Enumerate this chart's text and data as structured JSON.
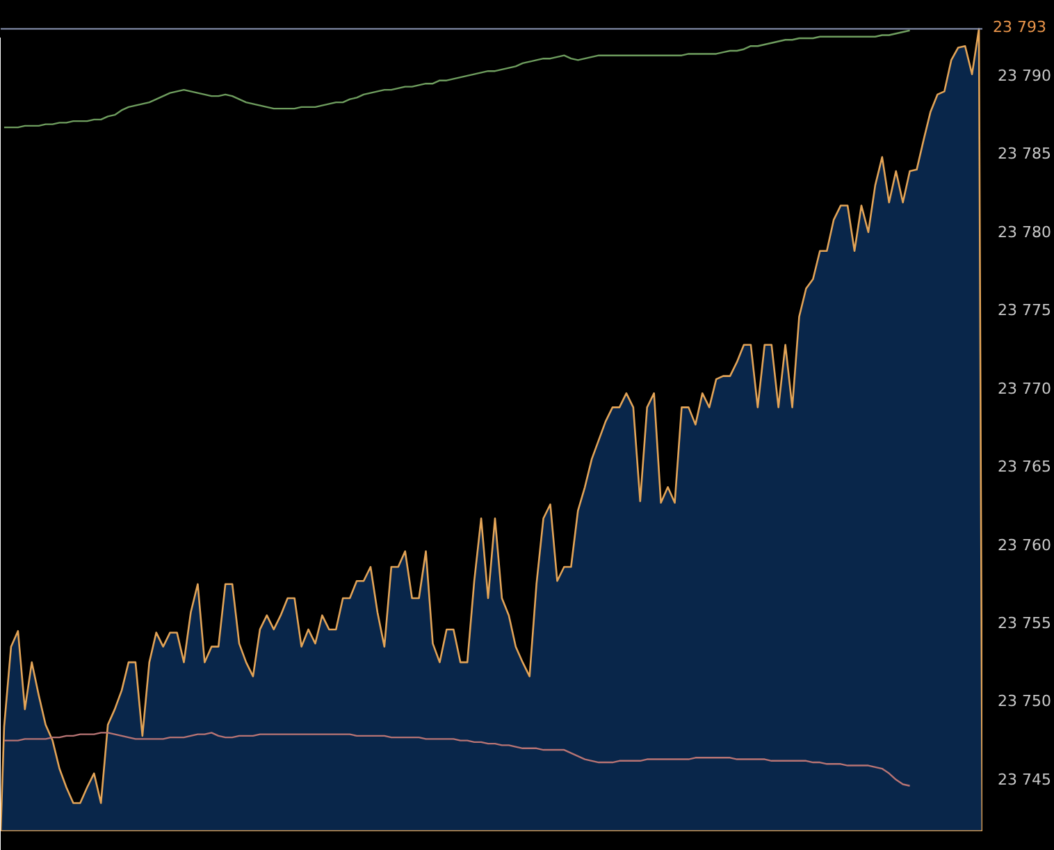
{
  "chart_data": {
    "type": "line",
    "categories": [
      null,
      null,
      null,
      null,
      null,
      null,
      null,
      null,
      null,
      null,
      null,
      null,
      null,
      null,
      null,
      null,
      null,
      null,
      null,
      null,
      null,
      null,
      null,
      null,
      null,
      null,
      null,
      null,
      null,
      null,
      null,
      null,
      null,
      null,
      null,
      null,
      null,
      null,
      null,
      null,
      null,
      null,
      null,
      null,
      null,
      null,
      null,
      null,
      null,
      null,
      null,
      null,
      null,
      null,
      null,
      null,
      null,
      null,
      null,
      null,
      null,
      null,
      null,
      null,
      null,
      null,
      null,
      null,
      null,
      null,
      null,
      null,
      null,
      null,
      null,
      null,
      null,
      null,
      null,
      null,
      null,
      null,
      null,
      null,
      null,
      null,
      null,
      null,
      null,
      null,
      null,
      null,
      null,
      null,
      null,
      null,
      null,
      null,
      null,
      null,
      null,
      null,
      null,
      null,
      null,
      null,
      null,
      null,
      null,
      null,
      null,
      null,
      null,
      null,
      null,
      null,
      null,
      null,
      null,
      null,
      null,
      null,
      null,
      null,
      null,
      null,
      null,
      null,
      null,
      null,
      null,
      null,
      null,
      null,
      null,
      null,
      null,
      null,
      null,
      null,
      null,
      null
    ],
    "ylim": [
      23741.7,
      23794.8
    ],
    "yticks": [
      {
        "value": 23745,
        "label": "23 745"
      },
      {
        "value": 23750,
        "label": "23 750"
      },
      {
        "value": 23755,
        "label": "23 755"
      },
      {
        "value": 23760,
        "label": "23 760"
      },
      {
        "value": 23765,
        "label": "23 765"
      },
      {
        "value": 23770,
        "label": "23 770"
      },
      {
        "value": 23775,
        "label": "23 775"
      },
      {
        "value": 23780,
        "label": "23 780"
      },
      {
        "value": 23785,
        "label": "23 785"
      },
      {
        "value": 23790,
        "label": "23 790"
      }
    ],
    "tick_labels": "y",
    "ref_lines": [
      {
        "axis": "y",
        "value": 23793,
        "label": "23 793",
        "color": "#8a96b4"
      }
    ],
    "series": [
      {
        "type": "area",
        "color": "#e3a457",
        "values": [
          23748.4,
          23753.5,
          23754.5,
          23749.5,
          23752.5,
          23750.4,
          23748.5,
          23747.5,
          23745.7,
          23744.5,
          23743.5,
          23743.5,
          23744.5,
          23745.4,
          23743.5,
          23748.5,
          23749.5,
          23750.7,
          23752.5,
          23752.5,
          23747.8,
          23752.5,
          23754.4,
          23753.5,
          23754.4,
          23754.4,
          23752.5,
          23755.7,
          23757.5,
          23752.5,
          23753.5,
          23753.5,
          23757.5,
          23757.5,
          23753.7,
          23752.5,
          23751.6,
          23754.6,
          23755.5,
          23754.6,
          23755.5,
          23756.6,
          23756.6,
          23753.5,
          23754.6,
          23753.7,
          23755.5,
          23754.6,
          23754.6,
          23756.6,
          23756.6,
          23757.7,
          23757.7,
          23758.6,
          23755.7,
          23753.5,
          23758.6,
          23758.6,
          23759.6,
          23756.6,
          23756.6,
          23759.6,
          23753.7,
          23752.5,
          23754.6,
          23754.6,
          23752.5,
          23752.5,
          23757.7,
          23761.7,
          23756.6,
          23761.7,
          23756.6,
          23755.5,
          23753.5,
          23752.5,
          23751.6,
          23757.5,
          23761.7,
          23762.6,
          23757.7,
          23758.6,
          23758.6,
          23762.2,
          23763.7,
          23765.5,
          23766.7,
          23767.9,
          23768.8,
          23768.8,
          23769.7,
          23768.8,
          23762.8,
          23768.8,
          23769.7,
          23762.7,
          23763.7,
          23762.7,
          23768.8,
          23768.8,
          23767.7,
          23769.7,
          23768.8,
          23770.6,
          23770.8,
          23770.8,
          23771.7,
          23772.8,
          23772.8,
          23768.8,
          23772.8,
          23772.8,
          23768.8,
          23772.8,
          23768.8,
          23774.6,
          23776.4,
          23777.0,
          23778.8,
          23778.8,
          23780.8,
          23781.7,
          23781.7,
          23778.8,
          23781.7,
          23780.0,
          23783.0,
          23784.8,
          23781.9,
          23783.9,
          23781.9,
          23783.9,
          23784.0,
          23785.9,
          23787.7,
          23788.8,
          23789.0,
          23791.0,
          23791.8,
          23791.9,
          23790.1,
          23793.0
        ]
      },
      {
        "type": "line",
        "color": "#6f9e5f",
        "values": [
          23786.7,
          23786.7,
          23786.7,
          23786.8,
          23786.8,
          23786.8,
          23786.9,
          23786.9,
          23787.0,
          23787.0,
          23787.1,
          23787.1,
          23787.1,
          23787.2,
          23787.2,
          23787.4,
          23787.5,
          23787.8,
          23788.0,
          23788.1,
          23788.2,
          23788.3,
          23788.5,
          23788.7,
          23788.9,
          23789.0,
          23789.1,
          23789.0,
          23788.9,
          23788.8,
          23788.7,
          23788.7,
          23788.8,
          23788.7,
          23788.5,
          23788.3,
          23788.2,
          23788.1,
          23788.0,
          23787.9,
          23787.9,
          23787.9,
          23787.9,
          23788.0,
          23788.0,
          23788.0,
          23788.1,
          23788.2,
          23788.3,
          23788.3,
          23788.5,
          23788.6,
          23788.8,
          23788.9,
          23789.0,
          23789.1,
          23789.1,
          23789.2,
          23789.3,
          23789.3,
          23789.4,
          23789.5,
          23789.5,
          23789.7,
          23789.7,
          23789.8,
          23789.9,
          23790.0,
          23790.1,
          23790.2,
          23790.3,
          23790.3,
          23790.4,
          23790.5,
          23790.6,
          23790.8,
          23790.9,
          23791.0,
          23791.1,
          23791.1,
          23791.2,
          23791.3,
          23791.1,
          23791.0,
          23791.1,
          23791.2,
          23791.3,
          23791.3,
          23791.3,
          23791.3,
          23791.3,
          23791.3,
          23791.3,
          23791.3,
          23791.3,
          23791.3,
          23791.3,
          23791.3,
          23791.3,
          23791.4,
          23791.4,
          23791.4,
          23791.4,
          23791.4,
          23791.5,
          23791.6,
          23791.6,
          23791.7,
          23791.9,
          23791.9,
          23792.0,
          23792.1,
          23792.2,
          23792.3,
          23792.3,
          23792.4,
          23792.4,
          23792.4,
          23792.5,
          23792.5,
          23792.5,
          23792.5,
          23792.5,
          23792.5,
          23792.5,
          23792.5,
          23792.5,
          23792.6,
          23792.6,
          23792.7,
          23792.8,
          23792.9,
          null,
          null,
          null,
          null,
          null,
          null,
          null,
          null,
          null,
          null
        ]
      },
      {
        "type": "line",
        "color": "#b87474",
        "values": [
          23747.5,
          23747.5,
          23747.5,
          23747.6,
          23747.6,
          23747.6,
          23747.6,
          23747.7,
          23747.7,
          23747.8,
          23747.8,
          23747.9,
          23747.9,
          23747.9,
          23748.0,
          23748.0,
          23747.9,
          23747.8,
          23747.7,
          23747.6,
          23747.6,
          23747.6,
          23747.6,
          23747.6,
          23747.7,
          23747.7,
          23747.7,
          23747.8,
          23747.9,
          23747.9,
          23748.0,
          23747.8,
          23747.7,
          23747.7,
          23747.8,
          23747.8,
          23747.8,
          23747.9,
          23747.9,
          23747.9,
          23747.9,
          23747.9,
          23747.9,
          23747.9,
          23747.9,
          23747.9,
          23747.9,
          23747.9,
          23747.9,
          23747.9,
          23747.9,
          23747.8,
          23747.8,
          23747.8,
          23747.8,
          23747.8,
          23747.7,
          23747.7,
          23747.7,
          23747.7,
          23747.7,
          23747.6,
          23747.6,
          23747.6,
          23747.6,
          23747.6,
          23747.5,
          23747.5,
          23747.4,
          23747.4,
          23747.3,
          23747.3,
          23747.2,
          23747.2,
          23747.1,
          23747.0,
          23747.0,
          23747.0,
          23746.9,
          23746.9,
          23746.9,
          23746.9,
          23746.7,
          23746.5,
          23746.3,
          23746.2,
          23746.1,
          23746.1,
          23746.1,
          23746.2,
          23746.2,
          23746.2,
          23746.2,
          23746.3,
          23746.3,
          23746.3,
          23746.3,
          23746.3,
          23746.3,
          23746.3,
          23746.4,
          23746.4,
          23746.4,
          23746.4,
          23746.4,
          23746.4,
          23746.3,
          23746.3,
          23746.3,
          23746.3,
          23746.3,
          23746.2,
          23746.2,
          23746.2,
          23746.2,
          23746.2,
          23746.2,
          23746.1,
          23746.1,
          23746.0,
          23746.0,
          23746.0,
          23745.9,
          23745.9,
          23745.9,
          23745.9,
          23745.8,
          23745.7,
          23745.4,
          23745.0,
          23744.7,
          23744.6,
          null,
          null,
          null,
          null,
          null,
          null,
          null,
          null,
          null,
          null
        ]
      }
    ]
  }
}
